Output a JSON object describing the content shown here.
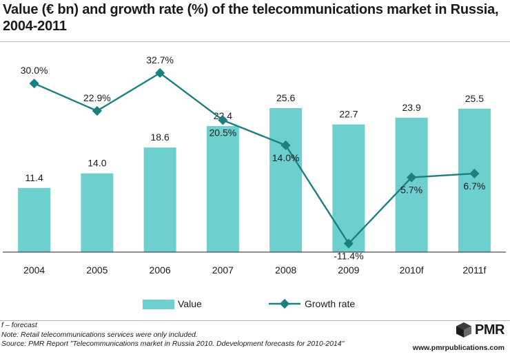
{
  "title": "Value (€ bn) and growth rate (%) of the telecommunications market in Russia, 2004-2011",
  "chart_data": {
    "type": "bar+line",
    "categories": [
      "2004",
      "2005",
      "2006",
      "2007",
      "2008",
      "2009",
      "2010f",
      "2011f"
    ],
    "series": [
      {
        "name": "Value",
        "type": "bar",
        "values": [
          11.4,
          14.0,
          18.6,
          22.4,
          25.6,
          22.7,
          23.9,
          25.5
        ],
        "labels": [
          "11.4",
          "14.0",
          "18.6",
          "22.4",
          "25.6",
          "22.7",
          "23.9",
          "25.5"
        ],
        "color": "#6ECFCF",
        "ylim": [
          0,
          30
        ]
      },
      {
        "name": "Growth rate",
        "type": "line",
        "values": [
          30.0,
          22.9,
          32.7,
          20.5,
          14.0,
          -11.4,
          5.7,
          6.7
        ],
        "labels": [
          "30.0%",
          "22.9%",
          "32.7%",
          "20.5%",
          "14.0%",
          "-11.4%",
          "5.7%",
          "6.7%"
        ],
        "label_position": [
          "above",
          "above",
          "above",
          "below",
          "below",
          "below",
          "below",
          "below"
        ],
        "color": "#1A8080",
        "ylim": [
          -17,
          40
        ]
      }
    ],
    "legend": [
      "Value",
      "Growth rate"
    ],
    "legend_position": "bottom",
    "grid": false
  },
  "footer": {
    "note1": "f – forecast",
    "note2": "Note: Retail telecommunications services were only included.",
    "note3": "Source: PMR Report \"Telecommunications market in Russia 2010. Ddevelopment forecasts for 2010-2014\""
  },
  "logo": {
    "text": "PMR",
    "url": "www.pmrpublications.com"
  }
}
